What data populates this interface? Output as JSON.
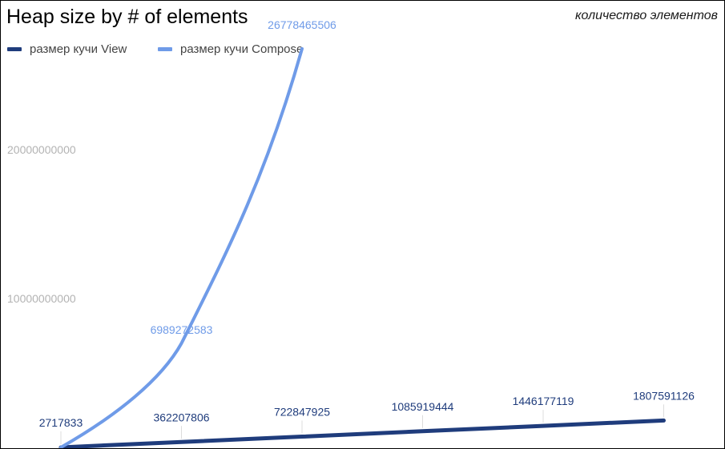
{
  "chart_data": {
    "type": "line",
    "title": "Heap size by # of elements",
    "xlabel": "количество элементов",
    "ylabel": "",
    "ylim": [
      0,
      28500000000
    ],
    "yticks": [
      {
        "value": 10000000000,
        "label": "10000000000"
      },
      {
        "value": 20000000000,
        "label": "20000000000"
      }
    ],
    "grid": false,
    "legend": "top-left",
    "series": [
      {
        "name": "размер кучи View",
        "color": "#1f3c7c",
        "label_color": "#1f3c7c",
        "values": [
          2717833,
          362207806,
          722847925,
          1085919444,
          1446177119,
          1807591126
        ],
        "labels": [
          "2717833",
          "362207806",
          "722847925",
          "1085919444",
          "1446177119",
          "1807591126"
        ]
      },
      {
        "name": "размер кучи Compose",
        "color": "#6f9be8",
        "label_color": "#6f9be8",
        "values": [
          0,
          6989272583,
          26778465506
        ],
        "labels": [
          "",
          "6989272583",
          "26778465506"
        ]
      }
    ]
  }
}
